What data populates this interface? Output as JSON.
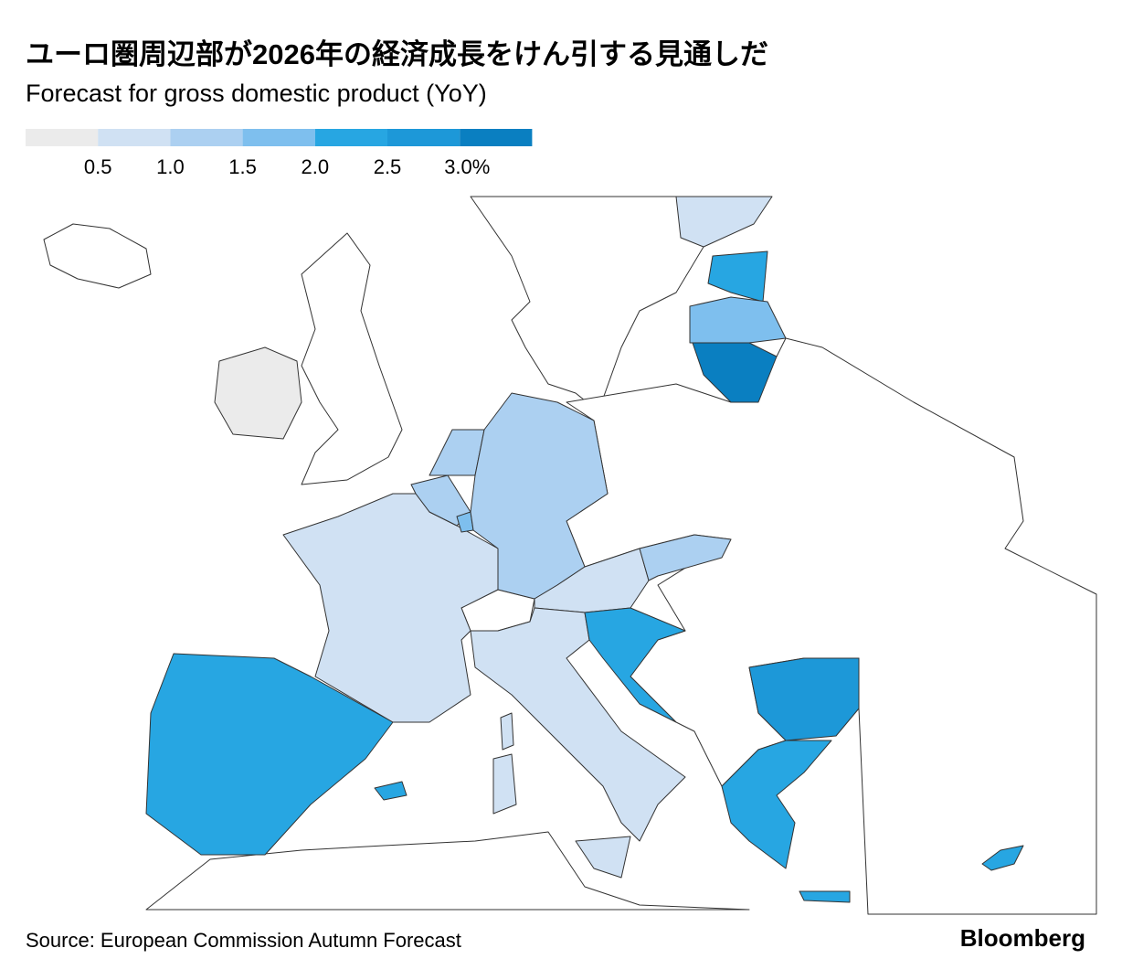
{
  "header": {
    "title": "ユーロ圏周辺部が2026年の経済成長をけん引する見通しだ",
    "subtitle": "Forecast for gross domestic product (YoY)"
  },
  "legend": {
    "colors": [
      "#ebebeb",
      "#d0e1f3",
      "#acd0f1",
      "#7ebfee",
      "#27a6e2",
      "#1d98d8",
      "#0a7fc1"
    ],
    "ticks": [
      0.5,
      {
        "value": 1,
        "label": "1.0"
      },
      1.5,
      {
        "value": 2,
        "label": "2.0"
      },
      2.5,
      {
        "value": 3,
        "label": "3.0%"
      }
    ]
  },
  "footer": {
    "source": "Source: European Commission Autumn Forecast",
    "brand": "Bloomberg"
  }
}
